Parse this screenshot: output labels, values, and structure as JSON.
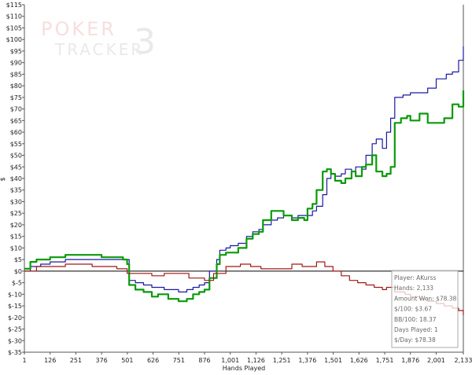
{
  "chart_data": {
    "type": "line",
    "xlabel": "Hands Played",
    "ylabel": "$",
    "xlim": [
      1,
      2133
    ],
    "ylim": [
      -35,
      115
    ],
    "x_ticks": [
      1,
      126,
      251,
      376,
      501,
      626,
      751,
      876,
      1001,
      1126,
      1251,
      1376,
      1501,
      1626,
      1751,
      1876,
      2001,
      2133
    ],
    "x_tick_labels": [
      "1",
      "126",
      "251",
      "376",
      "501",
      "626",
      "751",
      "876",
      "1,001",
      "1,126",
      "1,251",
      "1,376",
      "1,501",
      "1,626",
      "1,751",
      "1,876",
      "2,001",
      "2,133"
    ],
    "y_ticks": [
      -35,
      -30,
      -25,
      -20,
      -15,
      -10,
      -5,
      0,
      5,
      10,
      15,
      20,
      25,
      30,
      35,
      40,
      45,
      50,
      55,
      60,
      65,
      70,
      75,
      80,
      85,
      90,
      95,
      100,
      105,
      110,
      115
    ],
    "y_tick_labels": [
      "$-35",
      "$-30",
      "$-25",
      "$-20",
      "$-15",
      "$-10",
      "$-5",
      "$0",
      "$5",
      "$10",
      "$15",
      "$20",
      "$25",
      "$30",
      "$35",
      "$40",
      "$45",
      "$50",
      "$55",
      "$60",
      "$65",
      "$70",
      "$75",
      "$80",
      "$85",
      "$90",
      "$95",
      "$100",
      "$105",
      "$110",
      "$115"
    ],
    "grid": false,
    "series": [
      {
        "color": "#1a1aa0",
        "x": [
          1,
          30,
          80,
          126,
          200,
          251,
          330,
          376,
          450,
          480,
          500,
          510,
          540,
          580,
          620,
          680,
          700,
          750,
          790,
          820,
          850,
          876,
          900,
          935,
          950,
          980,
          1001,
          1040,
          1080,
          1110,
          1140,
          1160,
          1200,
          1230,
          1260,
          1300,
          1330,
          1360,
          1376,
          1400,
          1420,
          1450,
          1470,
          1490,
          1510,
          1540,
          1560,
          1590,
          1610,
          1640,
          1660,
          1690,
          1710,
          1740,
          1760,
          1780,
          1800,
          1840,
          1876,
          1930,
          1960,
          2001,
          2050,
          2080,
          2110,
          2133
        ],
        "y": [
          0,
          2,
          3,
          4,
          5,
          5,
          5,
          5,
          5,
          5,
          5,
          -4,
          -5,
          -6,
          -7,
          -8,
          -8,
          -9,
          -8,
          -7,
          -6,
          -5,
          0,
          5,
          9,
          10,
          11,
          12,
          15,
          17,
          18,
          20,
          22,
          23,
          24,
          23,
          24,
          24,
          24,
          26,
          28,
          33,
          40,
          42,
          41,
          42,
          44,
          43,
          45,
          44,
          50,
          55,
          57,
          53,
          60,
          66,
          75,
          76,
          77,
          77,
          79,
          83,
          85,
          86,
          91,
          97
        ]
      },
      {
        "color": "#0a9a0a",
        "x": [
          1,
          30,
          60,
          126,
          200,
          251,
          330,
          376,
          450,
          480,
          500,
          510,
          540,
          580,
          620,
          650,
          700,
          750,
          790,
          820,
          850,
          876,
          900,
          935,
          950,
          980,
          1001,
          1040,
          1080,
          1110,
          1140,
          1160,
          1200,
          1230,
          1260,
          1300,
          1330,
          1360,
          1376,
          1400,
          1420,
          1450,
          1470,
          1490,
          1510,
          1540,
          1560,
          1590,
          1610,
          1640,
          1660,
          1690,
          1710,
          1740,
          1760,
          1780,
          1800,
          1830,
          1860,
          1876,
          1920,
          1960,
          2001,
          2040,
          2080,
          2110,
          2133
        ],
        "y": [
          1,
          4,
          5,
          6,
          7,
          7,
          7,
          6,
          6,
          5,
          3,
          -6,
          -8,
          -9,
          -11,
          -10,
          -12,
          -13,
          -12,
          -10,
          -9,
          -8,
          -3,
          3,
          7,
          8,
          8,
          10,
          14,
          16,
          17,
          22,
          26,
          26,
          24,
          22,
          23,
          22,
          27,
          29,
          35,
          43,
          44,
          42,
          39,
          38,
          40,
          43,
          41,
          45,
          46,
          50,
          43,
          41,
          42,
          45,
          64,
          66,
          67,
          65,
          68,
          64,
          64,
          66,
          72,
          71,
          78
        ]
      },
      {
        "color": "#a01818",
        "x": [
          1,
          60,
          126,
          200,
          251,
          330,
          376,
          450,
          500,
          550,
          620,
          680,
          750,
          800,
          876,
          920,
          980,
          1001,
          1050,
          1100,
          1150,
          1200,
          1250,
          1300,
          1350,
          1376,
          1420,
          1460,
          1500,
          1540,
          1580,
          1620,
          1660,
          1700,
          1740,
          1760,
          1800,
          1850,
          1876,
          1920,
          1960,
          2001,
          2040,
          2080,
          2110,
          2133
        ],
        "y": [
          0,
          2,
          2,
          3,
          3,
          2,
          2,
          1,
          -1,
          -1,
          -2,
          -1,
          -1,
          -3,
          -4,
          -1,
          2,
          2,
          3,
          2,
          1,
          1,
          1,
          3,
          2,
          2,
          4,
          2,
          0,
          -2,
          -4,
          -5,
          -6,
          -7,
          -8,
          -7,
          -9,
          -10,
          -11,
          -12,
          -13,
          -14,
          -15,
          -16,
          -17,
          -19
        ]
      }
    ],
    "stats_box": [
      "Player: AKurss",
      "Hands: 2,133",
      "Amount Won: $78.38",
      "$/100: $3.67",
      "BB/100: 18.37",
      "Days Played: 1",
      "$/Day: $78.38"
    ],
    "watermark": {
      "line1": "POKER",
      "line2": "TRACKER",
      "digit": "3"
    }
  }
}
